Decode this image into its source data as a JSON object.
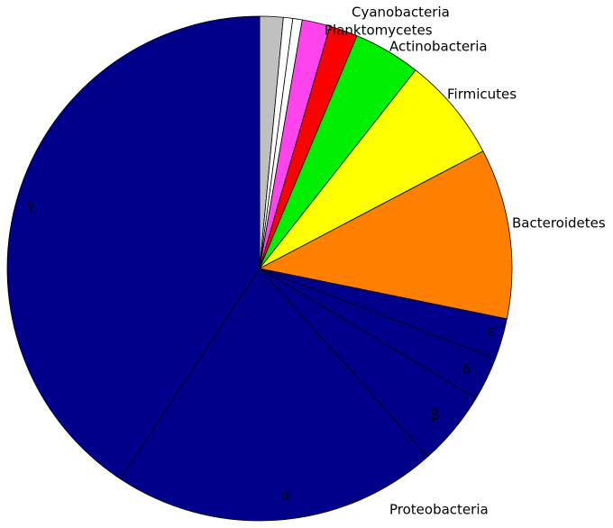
{
  "chart_data": {
    "type": "pie",
    "categories": [
      null,
      null,
      null,
      "Cyanobacteria",
      "Planktomycetes",
      "Actinobacteria",
      "Firmicutes",
      "Bacteroidetes",
      "ε",
      "δ",
      "β",
      "α",
      "γ"
    ],
    "values": [
      1.5,
      0.6,
      0.6,
      1.8,
      1.8,
      4.3,
      6.7,
      10.9,
      2.6,
      2.8,
      4.8,
      20.9,
      40.7
    ],
    "colors": [
      "#c0c0c0",
      "#ffffff",
      "#ffffff",
      "#ff44ee",
      "#ff0000",
      "#00ee00",
      "#ffff00",
      "#ff8000",
      "#00008b",
      "#00008b",
      "#00008b",
      "#00008b",
      "#00008b"
    ],
    "annotations": [
      "Proteobacteria"
    ]
  }
}
